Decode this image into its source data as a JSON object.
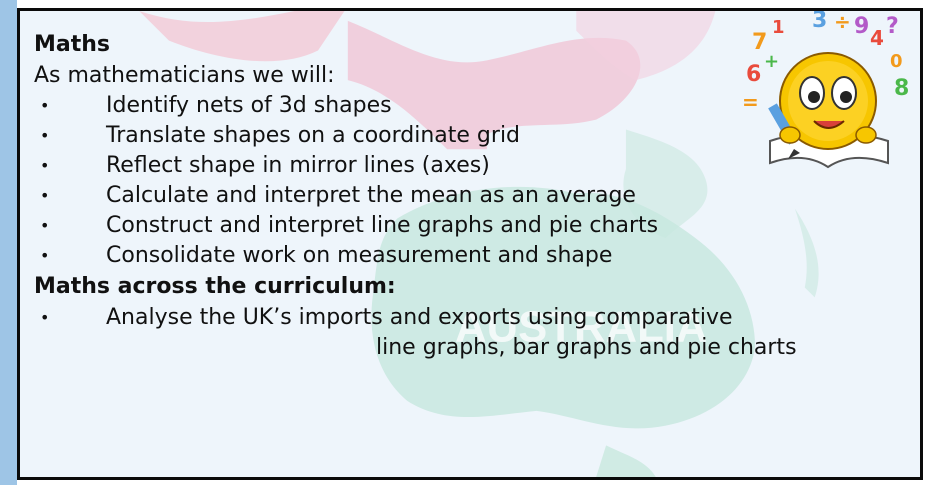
{
  "panel": {
    "heading": "Maths",
    "intro": "As mathematicians we will:",
    "bullets": [
      "Identify nets of 3d shapes",
      "Translate shapes on a coordinate grid",
      "Reflect shape in mirror lines (axes)",
      "Calculate and interpret the mean as an average",
      "Construct and interpret line graphs and pie charts",
      "Consolidate work on measurement and shape"
    ],
    "subheading": "Maths across the curriculum:",
    "cross_curricular": {
      "line1": "Analyse the UK’s imports and exports using comparative",
      "line2": "line graphs, bar graphs and pie charts"
    },
    "bullet_glyph": "•"
  },
  "background": {
    "map_label": "AUSTRALIA"
  },
  "decoration": {
    "emoji_digits": [
      "7",
      "1",
      "3",
      "÷",
      "9",
      "4",
      "?",
      "6",
      "+",
      "=",
      "0",
      "8"
    ]
  },
  "colors": {
    "border": "#0a0a0a",
    "panel_bg": "#eef5fb",
    "text": "#111111",
    "emoji_face": "#f7c600"
  }
}
